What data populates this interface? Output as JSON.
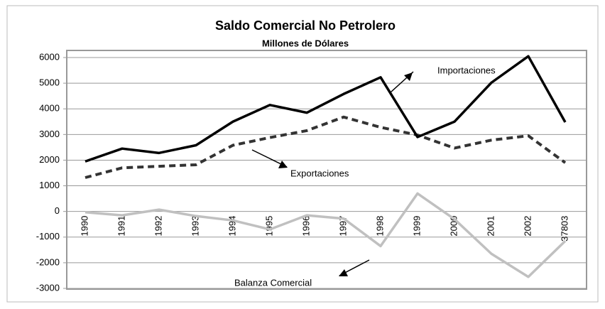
{
  "chart_data": {
    "type": "line",
    "title": "Saldo Comercial No Petrolero",
    "subtitle": "Millones de Dólares",
    "categories": [
      "1990",
      "1991",
      "1992",
      "1993",
      "1994",
      "1995",
      "1996",
      "1997",
      "1998",
      "1999",
      "2000",
      "2001",
      "2002",
      "37803"
    ],
    "series": [
      {
        "name": "Importaciones",
        "color": "#000000",
        "line_style": "solid",
        "values": [
          1950,
          2450,
          2280,
          2580,
          3500,
          4150,
          3850,
          4580,
          5230,
          2900,
          3500,
          5020,
          6050,
          3480
        ]
      },
      {
        "name": "Exportaciones",
        "color": "#333333",
        "line_style": "dashed",
        "values": [
          1320,
          1700,
          1760,
          1820,
          2580,
          2880,
          3150,
          3680,
          3280,
          2980,
          2470,
          2780,
          2950,
          1900
        ]
      },
      {
        "name": "Balanza Comercial",
        "color": "#c0c0c0",
        "line_style": "solid",
        "values": [
          -30,
          -150,
          70,
          -180,
          -350,
          -700,
          -150,
          -280,
          -1350,
          700,
          -300,
          -1650,
          -2550,
          -1150
        ]
      }
    ],
    "ylim": [
      -3000,
      6000
    ],
    "yticks": [
      -3000,
      -2000,
      -1000,
      0,
      1000,
      2000,
      3000,
      4000,
      5000,
      6000
    ],
    "grid": true
  }
}
